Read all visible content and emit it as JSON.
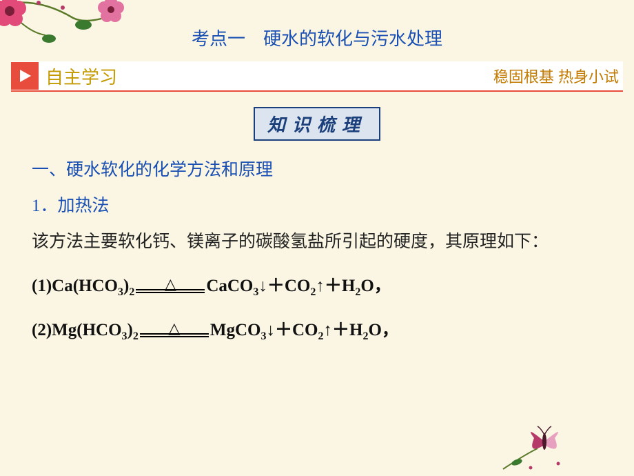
{
  "colors": {
    "background": "#faf6e3",
    "title": "#1a4fb3",
    "accent_red": "#e74c3c",
    "section_main": "#c39a00",
    "section_right": "#c27a00",
    "badge_text": "#1a3f7a",
    "badge_bg": "#dce4f0",
    "heading_blue": "#1a4fb3",
    "body_text": "#222222",
    "flower_pink": "#e24a7a",
    "flower_dark": "#7a1f3a",
    "leaf_green": "#3a7a2f",
    "butterfly_wing1": "#b53a6a",
    "butterfly_wing2": "#e7a0bf"
  },
  "title": "考点一　硬水的软化与污水处理",
  "section": {
    "main": "自主学习",
    "right": "稳固根基  热身小试"
  },
  "badge": "知识梳理",
  "heading1": "一、硬水软化的化学方法和原理",
  "heading2": "1．加热法",
  "paragraph": "该方法主要软化钙、镁离子的碳酸氢盐所引起的硬度，其原理如下：",
  "reactions": [
    {
      "numlabel": "(1)",
      "lhs_html": "Ca(HCO<sub>3</sub>)<sub>2</sub>",
      "rhs_html": "CaCO<sub>3</sub>↓＋CO<sub>2</sub>↑＋H<sub>2</sub>O，"
    },
    {
      "numlabel": "(2)",
      "lhs_html": "Mg(HCO<sub>3</sub>)<sub>2</sub>",
      "rhs_html": "MgCO<sub>3</sub>↓＋CO<sub>2</sub>↑＋H<sub>2</sub>O，"
    }
  ],
  "icons": {
    "play_triangle": "play-icon",
    "delta_triangle": "△"
  }
}
